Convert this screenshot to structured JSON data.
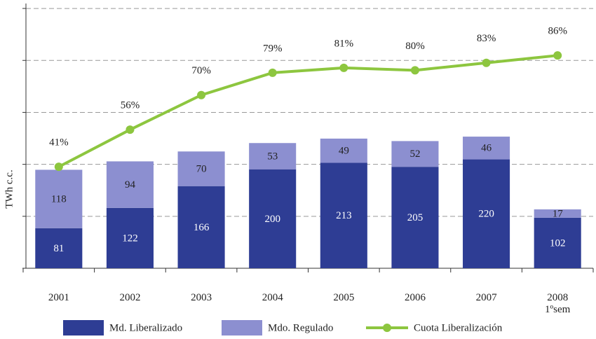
{
  "chart_data": {
    "type": "bar",
    "stacked": true,
    "y_label": "TWh c.c.",
    "categories": [
      "2001",
      "2002",
      "2003",
      "2004",
      "2005",
      "2006",
      "2007",
      "2008\n1ºsem"
    ],
    "series": [
      {
        "name": "Md. Liberalizado",
        "color": "#2e3d94",
        "values": [
          81,
          122,
          166,
          200,
          213,
          205,
          220,
          102
        ]
      },
      {
        "name": "Mdo. Regulado",
        "color": "#8c8fd0",
        "values": [
          118,
          94,
          70,
          53,
          49,
          52,
          46,
          17
        ]
      },
      {
        "name": "Cuota Liberalización",
        "type": "line",
        "axis": "y2",
        "color": "#8dc63f",
        "values": [
          41,
          56,
          70,
          79,
          81,
          80,
          83,
          86
        ],
        "value_labels": [
          "41%",
          "56%",
          "70%",
          "79%",
          "81%",
          "80%",
          "83%",
          "86%"
        ]
      }
    ],
    "ylim": [
      0,
      535
    ],
    "yticks": [
      0,
      105,
      210,
      315,
      420,
      525
    ],
    "y2lim": [
      0,
      107
    ],
    "grid": true
  }
}
